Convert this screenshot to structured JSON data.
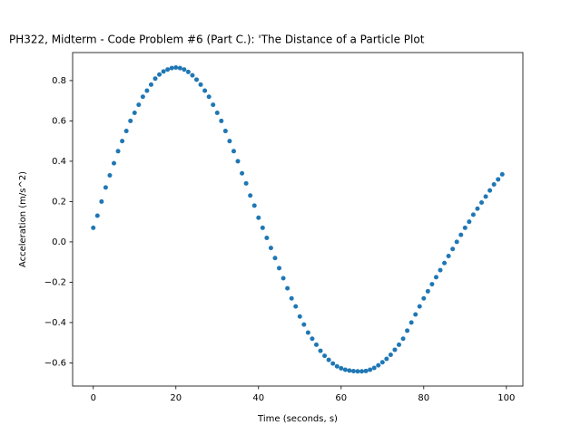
{
  "chart_data": {
    "type": "scatter",
    "title": "PH322, Midterm - Code Problem #6 (Part C.): 'The Distance of a Particle Plot",
    "x_label": "Time (seconds, s)",
    "y_label": "Acceleration (m/s^2)",
    "color": "#1f77b4",
    "xlim": [
      -5,
      104
    ],
    "ylim": [
      -0.715,
      0.939
    ],
    "xticks": [
      0,
      20,
      40,
      60,
      80,
      100
    ],
    "yticks": [
      {
        "value": -0.6,
        "label": "−0.6"
      },
      {
        "value": -0.4,
        "label": "−0.4"
      },
      {
        "value": -0.2,
        "label": "−0.2"
      },
      {
        "value": 0,
        "label": "0.0"
      },
      0.2,
      0.4,
      0.6,
      0.8
    ],
    "x": [
      0,
      1,
      2,
      3,
      4,
      5,
      6,
      7,
      8,
      9,
      10,
      11,
      12,
      13,
      14,
      15,
      16,
      17,
      18,
      19,
      20,
      21,
      22,
      23,
      24,
      25,
      26,
      27,
      28,
      29,
      30,
      31,
      32,
      33,
      34,
      35,
      36,
      37,
      38,
      39,
      40,
      41,
      42,
      43,
      44,
      45,
      46,
      47,
      48,
      49,
      50,
      51,
      52,
      53,
      54,
      55,
      56,
      57,
      58,
      59,
      60,
      61,
      62,
      63,
      64,
      65,
      66,
      67,
      68,
      69,
      70,
      71,
      72,
      73,
      74,
      75,
      76,
      77,
      78,
      79,
      80,
      81,
      82,
      83,
      84,
      85,
      86,
      87,
      88,
      89,
      90,
      91,
      92,
      93,
      94,
      95,
      96,
      97,
      98,
      99
    ],
    "values": [
      0.07,
      0.13,
      0.2,
      0.27,
      0.33,
      0.39,
      0.45,
      0.5,
      0.55,
      0.6,
      0.64,
      0.68,
      0.72,
      0.75,
      0.78,
      0.81,
      0.83,
      0.845,
      0.855,
      0.862,
      0.865,
      0.862,
      0.855,
      0.843,
      0.826,
      0.805,
      0.78,
      0.75,
      0.72,
      0.68,
      0.64,
      0.6,
      0.55,
      0.5,
      0.45,
      0.4,
      0.34,
      0.29,
      0.23,
      0.18,
      0.12,
      0.07,
      0.02,
      -0.03,
      -0.08,
      -0.13,
      -0.18,
      -0.23,
      -0.28,
      -0.32,
      -0.37,
      -0.41,
      -0.45,
      -0.48,
      -0.51,
      -0.54,
      -0.565,
      -0.585,
      -0.603,
      -0.617,
      -0.627,
      -0.634,
      -0.638,
      -0.641,
      -0.642,
      -0.642,
      -0.64,
      -0.634,
      -0.625,
      -0.612,
      -0.597,
      -0.58,
      -0.56,
      -0.535,
      -0.51,
      -0.48,
      -0.44,
      -0.4,
      -0.36,
      -0.32,
      -0.28,
      -0.245,
      -0.21,
      -0.175,
      -0.14,
      -0.105,
      -0.07,
      -0.035,
      0.0,
      0.035,
      0.07,
      0.1,
      0.135,
      0.165,
      0.195,
      0.225,
      0.255,
      0.285,
      0.31,
      0.335
    ]
  }
}
